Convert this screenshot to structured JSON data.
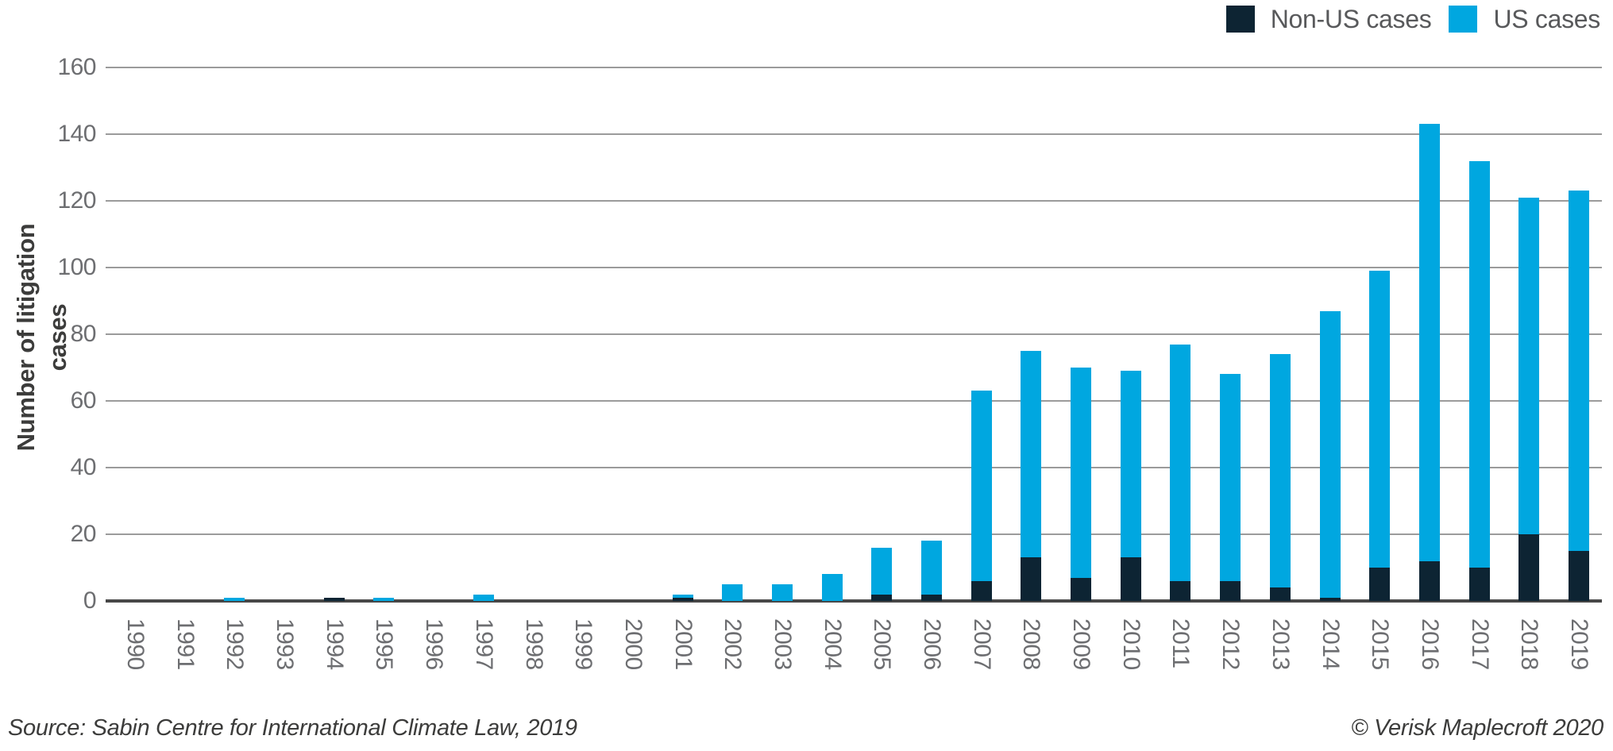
{
  "chart_data": {
    "type": "bar",
    "stacked": true,
    "title": "",
    "xlabel": "",
    "ylabel": "Number of litigation cases",
    "ylim": [
      0,
      160
    ],
    "yticks": [
      0,
      20,
      40,
      60,
      80,
      100,
      120,
      140,
      160
    ],
    "grid": true,
    "legend_position": "top-right",
    "categories": [
      "1990",
      "1991",
      "1992",
      "1993",
      "1994",
      "1995",
      "1996",
      "1997",
      "1998",
      "1999",
      "2000",
      "2001",
      "2002",
      "2003",
      "2004",
      "2005",
      "2006",
      "2007",
      "2008",
      "2009",
      "2010",
      "2011",
      "2012",
      "2013",
      "2014",
      "2015",
      "2016",
      "2017",
      "2018",
      "2019"
    ],
    "series": [
      {
        "name": "Non-US cases",
        "color": "#0d2433",
        "values": [
          0,
          0,
          0,
          0,
          1,
          0,
          0,
          0,
          0,
          0,
          0,
          1,
          0,
          0,
          0,
          2,
          2,
          6,
          13,
          7,
          13,
          6,
          6,
          4,
          1,
          10,
          12,
          10,
          20,
          15
        ]
      },
      {
        "name": "US cases",
        "color": "#00a7e0",
        "values": [
          0,
          0,
          1,
          0,
          0,
          1,
          0,
          2,
          0,
          0,
          0,
          1,
          5,
          5,
          8,
          14,
          16,
          57,
          62,
          63,
          56,
          71,
          62,
          70,
          86,
          89,
          131,
          122,
          101,
          108
        ]
      }
    ]
  },
  "colors": {
    "grid_line": "#9b9b9b",
    "baseline": "#474747",
    "tick_text": "#6d6e71",
    "legend_text": "#58595b"
  },
  "footer": {
    "source": "Source: Sabin Centre for International Climate Law, 2019",
    "copyright": "© Verisk Maplecroft 2020"
  }
}
